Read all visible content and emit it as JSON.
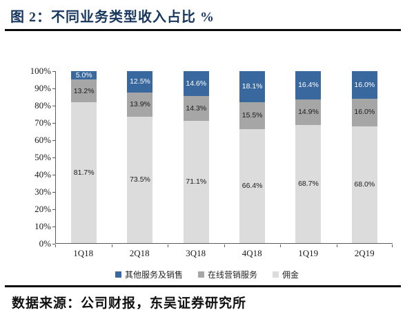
{
  "figure": {
    "title": "图 2：不同业务类型收入占比  %",
    "source_note": "数据来源：公司财报，东吴证券研究所"
  },
  "chart_data": {
    "type": "bar",
    "subtype": "stacked-100-percent-column",
    "title": "不同业务类型收入占比 %",
    "categories": [
      "1Q18",
      "2Q18",
      "3Q18",
      "4Q18",
      "1Q19",
      "2Q19"
    ],
    "series": [
      {
        "name": "其他服务及销售",
        "color": "#38689E",
        "label_color": "#FFFFFF",
        "values": [
          5.0,
          12.5,
          14.6,
          18.1,
          16.4,
          16.0
        ]
      },
      {
        "name": "在线营销服务",
        "color": "#A6A6A6",
        "label_color": "#1A1A1A",
        "values": [
          13.2,
          13.9,
          14.3,
          15.5,
          14.9,
          16.0
        ]
      },
      {
        "name": "佣金",
        "color": "#DCDCDC",
        "label_color": "#1A1A1A",
        "values": [
          81.7,
          73.5,
          71.1,
          66.4,
          68.7,
          68.0
        ]
      }
    ],
    "stack_order_top_to_bottom": [
      "其他服务及销售",
      "在线营销服务",
      "佣金"
    ],
    "value_label_format": "0.0%",
    "xlabel": "",
    "ylabel": "",
    "ylim": [
      0,
      100
    ],
    "y_ticks": [
      "0%",
      "10%",
      "20%",
      "30%",
      "40%",
      "50%",
      "60%",
      "70%",
      "80%",
      "90%",
      "100%"
    ],
    "grid": false,
    "legend_position": "bottom"
  }
}
